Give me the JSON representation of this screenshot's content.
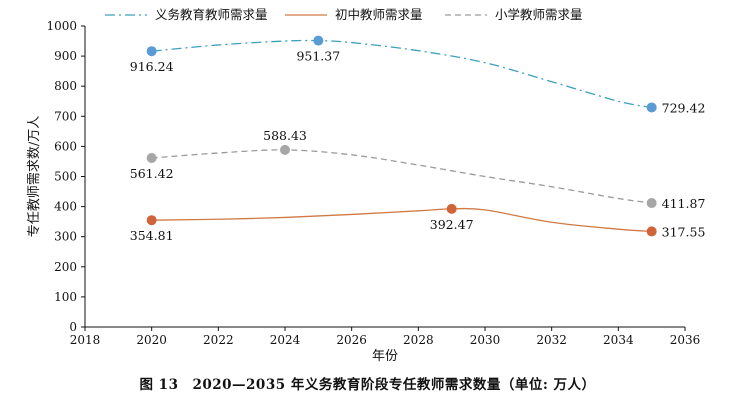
{
  "caption": "图 13　2020—2035 年义务教育阶段专任教师需求数量（单位: 万人）",
  "chart_data": {
    "type": "line",
    "xlabel": "年份",
    "ylabel": "专任教师需求数/万人",
    "xlim": [
      2018,
      2036
    ],
    "ylim": [
      0,
      1000
    ],
    "xticks": [
      2018,
      2020,
      2022,
      2024,
      2026,
      2028,
      2030,
      2032,
      2034,
      2036
    ],
    "yticks": [
      0,
      100,
      200,
      300,
      400,
      500,
      600,
      700,
      800,
      900,
      1000
    ],
    "grid": false,
    "legend_position": "top",
    "series": [
      {
        "name": "义务教育教师需求量",
        "color": "#3aa1ba",
        "marker_color": "#5b9bd5",
        "dash": "10,4,2,4",
        "curve": [
          [
            2020,
            916.24
          ],
          [
            2022,
            937
          ],
          [
            2024,
            950
          ],
          [
            2025,
            951.37
          ],
          [
            2026,
            945
          ],
          [
            2028,
            918
          ],
          [
            2030,
            878
          ],
          [
            2032,
            815
          ],
          [
            2034,
            750
          ],
          [
            2035,
            729.42
          ]
        ],
        "points": [
          [
            2020,
            916.24
          ],
          [
            2025,
            951.37
          ],
          [
            2035,
            729.42
          ]
        ],
        "labels": [
          "916.24",
          "951.37",
          "729.42"
        ]
      },
      {
        "name": "初中教师需求量",
        "color": "#d07a43",
        "marker_color": "#d0633a",
        "dash": "",
        "curve": [
          [
            2020,
            354.81
          ],
          [
            2022,
            358
          ],
          [
            2024,
            364
          ],
          [
            2026,
            374
          ],
          [
            2028,
            386
          ],
          [
            2029,
            392.47
          ],
          [
            2030,
            389
          ],
          [
            2032,
            348
          ],
          [
            2034,
            325
          ],
          [
            2035,
            317.55
          ]
        ],
        "points": [
          [
            2020,
            354.81
          ],
          [
            2029,
            392.47
          ],
          [
            2035,
            317.55
          ]
        ],
        "labels": [
          "354.81",
          "392.47",
          "317.55"
        ]
      },
      {
        "name": "小学教师需求量",
        "color": "#9a9a9a",
        "marker_color": "#a6a6a6",
        "dash": "6,4",
        "curve": [
          [
            2020,
            561.42
          ],
          [
            2022,
            578
          ],
          [
            2024,
            588.43
          ],
          [
            2026,
            572
          ],
          [
            2028,
            538
          ],
          [
            2030,
            500
          ],
          [
            2032,
            466
          ],
          [
            2034,
            427
          ],
          [
            2035,
            411.87
          ]
        ],
        "points": [
          [
            2020,
            561.42
          ],
          [
            2024,
            588.43
          ],
          [
            2035,
            411.87
          ]
        ],
        "labels": [
          "561.42",
          "588.43",
          "411.87"
        ]
      }
    ]
  }
}
